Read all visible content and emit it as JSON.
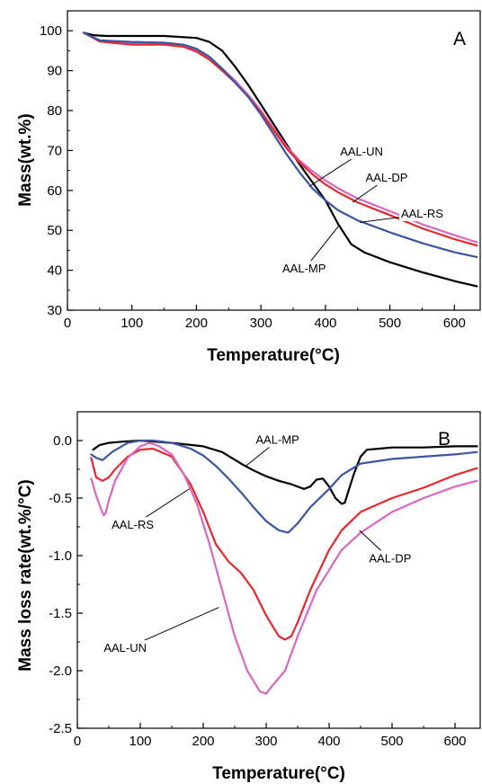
{
  "chart_data": [
    {
      "type": "line",
      "panel_label": "A",
      "xlabel": "Temperature(°C)",
      "ylabel": "Mass(wt.%)",
      "xlim": [
        0,
        640
      ],
      "ylim": [
        30,
        105
      ],
      "xticks": [
        "0",
        "100",
        "200",
        "300",
        "400",
        "500",
        "600"
      ],
      "yticks": [
        "30",
        "40",
        "50",
        "60",
        "70",
        "80",
        "90",
        "100"
      ],
      "grid": false,
      "legend": "inline labels",
      "series": [
        {
          "name": "AAL-MP",
          "color": "#000000",
          "x": [
            25,
            40,
            60,
            100,
            150,
            200,
            220,
            240,
            260,
            280,
            300,
            320,
            340,
            360,
            380,
            400,
            420,
            440,
            460,
            500,
            550,
            600,
            635
          ],
          "y": [
            99.5,
            98.9,
            98.7,
            98.7,
            98.7,
            98.2,
            97.2,
            95,
            91,
            86.5,
            81.5,
            76.5,
            71.5,
            66.5,
            62,
            57.5,
            51.5,
            46.5,
            44.5,
            42,
            39.5,
            37.3,
            36
          ]
        },
        {
          "name": "AAL-UN",
          "color": "#d966c0",
          "x": [
            25,
            50,
            100,
            150,
            180,
            200,
            220,
            240,
            260,
            280,
            300,
            320,
            340,
            360,
            380,
            400,
            420,
            450,
            500,
            550,
            600,
            635
          ],
          "y": [
            99.5,
            97.5,
            96.8,
            96.8,
            96.3,
            95.2,
            93.2,
            90.5,
            87.5,
            84,
            80,
            75.5,
            71,
            67.5,
            64.8,
            62.5,
            60.5,
            58,
            54.8,
            51.5,
            48.8,
            47
          ]
        },
        {
          "name": "AAL-DP",
          "color": "#e5282d",
          "x": [
            25,
            50,
            100,
            150,
            180,
            200,
            220,
            240,
            260,
            280,
            300,
            320,
            340,
            360,
            380,
            400,
            420,
            450,
            500,
            550,
            600,
            635
          ],
          "y": [
            99.5,
            97.3,
            96.5,
            96.5,
            96,
            94.8,
            92.8,
            90,
            87,
            83.5,
            79.5,
            75,
            70.5,
            67,
            64,
            61.5,
            59.5,
            57,
            53.8,
            50.5,
            47.8,
            46.2
          ]
        },
        {
          "name": "AAL-RS",
          "color": "#3a55a4",
          "x": [
            25,
            50,
            100,
            150,
            180,
            200,
            220,
            240,
            260,
            280,
            300,
            320,
            340,
            360,
            380,
            400,
            420,
            450,
            500,
            550,
            600,
            635
          ],
          "y": [
            99.5,
            97.6,
            97.2,
            97,
            96.5,
            95.5,
            93.5,
            90.5,
            87,
            83.5,
            79,
            74,
            69,
            64.5,
            60.5,
            57.5,
            55,
            52.5,
            49.5,
            46.8,
            44.5,
            43.3
          ]
        }
      ],
      "annotations": [
        {
          "text": "AAL-UN",
          "series": "AAL-UN",
          "x": 456,
          "y": 69.5,
          "point_x": 375,
          "point_y": 61
        },
        {
          "text": "AAL-DP",
          "series": "AAL-DP",
          "x": 495,
          "y": 63,
          "point_x": 442,
          "point_y": 57
        },
        {
          "text": "AAL-RS",
          "series": "AAL-RS",
          "x": 550,
          "y": 54,
          "point_x": 453,
          "point_y": 52
        },
        {
          "text": "AAL-MP",
          "series": "AAL-MP",
          "x": 367,
          "y": 40.2,
          "point_x": 420,
          "point_y": 51
        }
      ]
    },
    {
      "type": "line",
      "panel_label": "B",
      "xlabel": "Temperature(°C)",
      "ylabel": "Mass loss rate(wt.%/°C)",
      "xlim": [
        0,
        640
      ],
      "ylim": [
        -2.5,
        0.25
      ],
      "xticks": [
        "0",
        "100",
        "200",
        "300",
        "400",
        "500",
        "600"
      ],
      "yticks": [
        "-2.5",
        "-2.0",
        "-1.5",
        "-1.0",
        "-0.5",
        "0.0"
      ],
      "grid": false,
      "legend": "inline labels",
      "series": [
        {
          "name": "AAL-MP",
          "color": "#000000",
          "x": [
            25,
            35,
            50,
            70,
            100,
            150,
            200,
            230,
            260,
            280,
            300,
            320,
            340,
            360,
            370,
            380,
            390,
            400,
            410,
            420,
            425,
            430,
            440,
            450,
            460,
            480,
            500,
            550,
            600,
            635
          ],
          "y": [
            -0.08,
            -0.04,
            -0.02,
            -0.01,
            0,
            -0.02,
            -0.05,
            -0.1,
            -0.2,
            -0.26,
            -0.31,
            -0.35,
            -0.38,
            -0.42,
            -0.4,
            -0.34,
            -0.33,
            -0.4,
            -0.5,
            -0.55,
            -0.54,
            -0.45,
            -0.28,
            -0.14,
            -0.08,
            -0.07,
            -0.06,
            -0.06,
            -0.05,
            -0.05
          ]
        },
        {
          "name": "AAL-RS",
          "color": "#3a55a4",
          "x": [
            22,
            30,
            40,
            55,
            80,
            100,
            120,
            150,
            180,
            200,
            220,
            240,
            260,
            280,
            300,
            320,
            335,
            350,
            370,
            400,
            420,
            450,
            500,
            550,
            600,
            635
          ],
          "y": [
            -0.12,
            -0.15,
            -0.17,
            -0.1,
            -0.02,
            0,
            0,
            -0.02,
            -0.07,
            -0.13,
            -0.22,
            -0.33,
            -0.45,
            -0.58,
            -0.7,
            -0.78,
            -0.8,
            -0.72,
            -0.58,
            -0.42,
            -0.3,
            -0.2,
            -0.16,
            -0.14,
            -0.12,
            -0.1
          ]
        },
        {
          "name": "AAL-DP",
          "color": "#e5282d",
          "x": [
            22,
            30,
            40,
            50,
            60,
            80,
            100,
            120,
            150,
            180,
            200,
            220,
            240,
            250,
            260,
            280,
            300,
            320,
            330,
            340,
            350,
            370,
            400,
            420,
            450,
            500,
            550,
            600,
            635
          ],
          "y": [
            -0.15,
            -0.32,
            -0.35,
            -0.32,
            -0.25,
            -0.14,
            -0.08,
            -0.07,
            -0.14,
            -0.38,
            -0.62,
            -0.9,
            -1.05,
            -1.1,
            -1.15,
            -1.3,
            -1.52,
            -1.7,
            -1.73,
            -1.7,
            -1.58,
            -1.3,
            -0.95,
            -0.78,
            -0.62,
            -0.5,
            -0.41,
            -0.3,
            -0.24
          ]
        },
        {
          "name": "AAL-UN",
          "color": "#d966c0",
          "x": [
            22,
            30,
            38,
            42,
            45,
            50,
            60,
            80,
            100,
            115,
            130,
            150,
            170,
            190,
            210,
            230,
            250,
            270,
            290,
            300,
            310,
            330,
            350,
            380,
            420,
            450,
            500,
            550,
            600,
            635
          ],
          "y": [
            -0.33,
            -0.48,
            -0.6,
            -0.65,
            -0.63,
            -0.52,
            -0.35,
            -0.15,
            -0.05,
            -0.02,
            -0.05,
            -0.12,
            -0.3,
            -0.55,
            -0.9,
            -1.3,
            -1.7,
            -2.0,
            -2.18,
            -2.2,
            -2.13,
            -2.0,
            -1.7,
            -1.3,
            -0.95,
            -0.8,
            -0.62,
            -0.5,
            -0.4,
            -0.35
          ]
        }
      ],
      "annotations": [
        {
          "text": "AAL-MP",
          "series": "AAL-MP",
          "x": 318,
          "y": 0.0,
          "point_x": 268,
          "point_y": -0.22
        },
        {
          "text": "AAL-RS",
          "series": "AAL-RS",
          "x": 88,
          "y": -0.74,
          "point_x": 178,
          "point_y": -0.42
        },
        {
          "text": "AAL-DP",
          "series": "AAL-DP",
          "x": 497,
          "y": -1.03,
          "point_x": 448,
          "point_y": -0.78
        },
        {
          "text": "AAL-UN",
          "series": "AAL-UN",
          "x": 76,
          "y": -1.81,
          "point_x": 225,
          "point_y": -1.45
        }
      ]
    }
  ]
}
